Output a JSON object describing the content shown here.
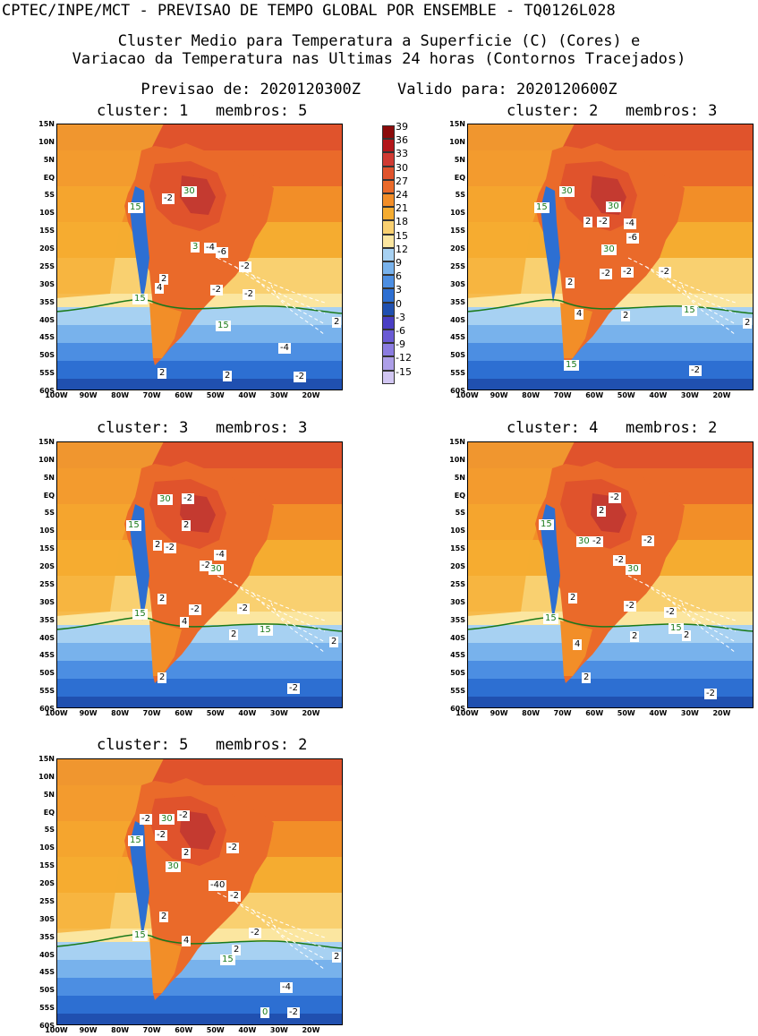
{
  "header": {
    "line1": "CPTEC/INPE/MCT - PREVISAO DE TEMPO GLOBAL POR ENSEMBLE - TQ0126L028",
    "line2": "Cluster Medio para Temperatura a Superficie (C) (Cores) e",
    "line3": "Variacao da Temperatura nas Ultimas 24 horas (Contornos Tracejados)",
    "line4": "Previsao de: 2020120300Z    Valido para: 2020120600Z"
  },
  "lat_ticks": [
    "15N",
    "10N",
    "5N",
    "EQ",
    "5S",
    "10S",
    "15S",
    "20S",
    "25S",
    "30S",
    "35S",
    "40S",
    "45S",
    "50S",
    "55S",
    "60S"
  ],
  "lon_ticks": [
    "100W",
    "90W",
    "80W",
    "70W",
    "60W",
    "50W",
    "40W",
    "30W",
    "20W"
  ],
  "colorbar": {
    "labels": [
      "39",
      "36",
      "33",
      "30",
      "27",
      "24",
      "21",
      "18",
      "15",
      "12",
      "9",
      "6",
      "3",
      "0",
      "-3",
      "-6",
      "-9",
      "-12",
      "-15"
    ],
    "colors": [
      "#8b0a0a",
      "#b3161a",
      "#d03a32",
      "#e0532c",
      "#ea6a2a",
      "#f28e28",
      "#f5ac30",
      "#f9d070",
      "#fbe6a0",
      "#a7d1f2",
      "#78b2ec",
      "#4c8ee2",
      "#2d6fd2",
      "#2050b0",
      "#4a3fc4",
      "#6a5ad4",
      "#8b7ce0",
      "#ad9fe8",
      "#d1c6f2"
    ]
  },
  "panels": [
    {
      "title": "cluster: 1   membros: 5",
      "labels": [
        {
          "t": "30",
          "g": true
        },
        {
          "t": "-2"
        },
        {
          "t": "15",
          "g": true
        },
        {
          "t": "3",
          "g": true
        },
        {
          "t": "-4"
        },
        {
          "t": "-6"
        },
        {
          "t": "-2"
        },
        {
          "t": "2"
        },
        {
          "t": "4"
        },
        {
          "t": "-2"
        },
        {
          "t": "-2"
        },
        {
          "t": "15",
          "g": true
        },
        {
          "t": "15",
          "g": true
        },
        {
          "t": "2"
        },
        {
          "t": "-4"
        },
        {
          "t": "2"
        },
        {
          "t": "2"
        },
        {
          "t": "-2"
        }
      ]
    },
    {
      "title": "cluster: 2   membros: 3",
      "labels": [
        {
          "t": "30",
          "g": true
        },
        {
          "t": "30",
          "g": true
        },
        {
          "t": "15",
          "g": true
        },
        {
          "t": "2"
        },
        {
          "t": "-2"
        },
        {
          "t": "-4"
        },
        {
          "t": "-6"
        },
        {
          "t": "30",
          "g": true
        },
        {
          "t": "-2"
        },
        {
          "t": "-2"
        },
        {
          "t": "-2"
        },
        {
          "t": "2"
        },
        {
          "t": "4"
        },
        {
          "t": "2"
        },
        {
          "t": "15",
          "g": true
        },
        {
          "t": "2"
        },
        {
          "t": "15",
          "g": true
        },
        {
          "t": "-2"
        }
      ]
    },
    {
      "title": "cluster: 3   membros: 3",
      "labels": [
        {
          "t": "30",
          "g": true
        },
        {
          "t": "-2"
        },
        {
          "t": "15",
          "g": true
        },
        {
          "t": "2"
        },
        {
          "t": "2"
        },
        {
          "t": "-2"
        },
        {
          "t": "-4"
        },
        {
          "t": "-2"
        },
        {
          "t": "30",
          "g": true
        },
        {
          "t": "2"
        },
        {
          "t": "-2"
        },
        {
          "t": "-2"
        },
        {
          "t": "4"
        },
        {
          "t": "15",
          "g": true
        },
        {
          "t": "2"
        },
        {
          "t": "15",
          "g": true
        },
        {
          "t": "2"
        },
        {
          "t": "2"
        },
        {
          "t": "-2"
        }
      ]
    },
    {
      "title": "cluster: 4   membros: 2",
      "labels": [
        {
          "t": "-2"
        },
        {
          "t": "2"
        },
        {
          "t": "15",
          "g": true
        },
        {
          "t": "30",
          "g": true
        },
        {
          "t": "-2"
        },
        {
          "t": "-2"
        },
        {
          "t": "-2"
        },
        {
          "t": "30",
          "g": true
        },
        {
          "t": "2"
        },
        {
          "t": "-2"
        },
        {
          "t": "-2"
        },
        {
          "t": "15",
          "g": true
        },
        {
          "t": "15",
          "g": true
        },
        {
          "t": "4"
        },
        {
          "t": "2"
        },
        {
          "t": "2"
        },
        {
          "t": "2"
        },
        {
          "t": "-2"
        }
      ]
    },
    {
      "title": "cluster: 5   membros: 2",
      "labels": [
        {
          "t": "-2"
        },
        {
          "t": "30",
          "g": true
        },
        {
          "t": "-2"
        },
        {
          "t": "-2"
        },
        {
          "t": "15",
          "g": true
        },
        {
          "t": "2"
        },
        {
          "t": "-2"
        },
        {
          "t": "30",
          "g": true
        },
        {
          "t": "-40"
        },
        {
          "t": "-2"
        },
        {
          "t": "2"
        },
        {
          "t": "-2"
        },
        {
          "t": "15",
          "g": true
        },
        {
          "t": "4"
        },
        {
          "t": "2"
        },
        {
          "t": "15",
          "g": true
        },
        {
          "t": "2"
        },
        {
          "t": "-4"
        },
        {
          "t": "-2"
        },
        {
          "t": "0",
          "g": true
        }
      ]
    }
  ]
}
